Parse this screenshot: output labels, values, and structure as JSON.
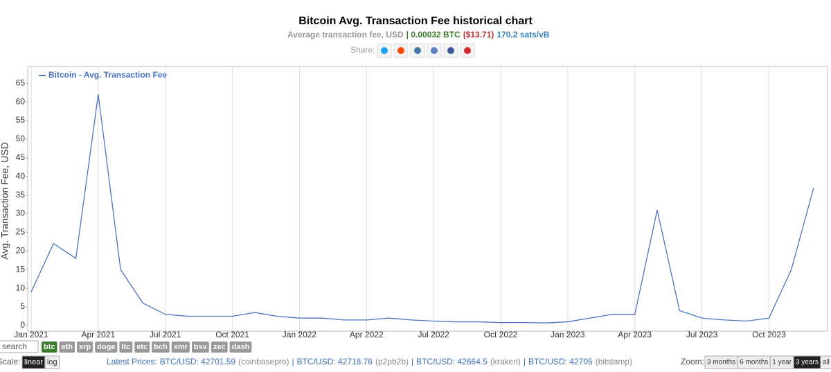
{
  "chart_data": {
    "type": "line",
    "title": "Bitcoin Avg. Transaction Fee historical chart",
    "subtitle": [
      "Average transaction fee, USD",
      "| 0.00032 BTC",
      "($13.71)",
      "170.2 sats/vB"
    ],
    "share_label": "Share:",
    "y_label": "Avg. Transaction Fee, USD",
    "x": [
      "2021-01",
      "2021-02",
      "2021-03",
      "2021-04",
      "2021-05",
      "2021-06",
      "2021-07",
      "2021-08",
      "2021-09",
      "2021-10",
      "2021-11",
      "2021-12",
      "2022-01",
      "2022-02",
      "2022-03",
      "2022-04",
      "2022-05",
      "2022-06",
      "2022-07",
      "2022-08",
      "2022-09",
      "2022-10",
      "2022-11",
      "2022-12",
      "2023-01",
      "2023-02",
      "2023-03",
      "2023-04",
      "2023-05",
      "2023-06",
      "2023-07",
      "2023-08",
      "2023-09",
      "2023-10",
      "2023-11",
      "2023-12"
    ],
    "series": [
      {
        "name": "Bitcoin - Avg. Transaction Fee",
        "color": "#4a72c4",
        "values": [
          9,
          22,
          18,
          62,
          15,
          6,
          3,
          2.5,
          2.5,
          2.5,
          3.5,
          2.5,
          2,
          2,
          1.5,
          1.5,
          2,
          1.5,
          1.2,
          1,
          1,
          0.8,
          0.8,
          0.7,
          1,
          2,
          3,
          3,
          31,
          4,
          2,
          1.5,
          1.2,
          2,
          15,
          37
        ]
      }
    ],
    "xlim": [
      "2021-01",
      "2023-12"
    ],
    "xticks": [
      {
        "value": "2021-01",
        "label": "Jan 2021"
      },
      {
        "value": "2021-04",
        "label": "Apr 2021"
      },
      {
        "value": "2021-07",
        "label": "Jul 2021"
      },
      {
        "value": "2021-10",
        "label": "Oct 2021"
      },
      {
        "value": "2022-01",
        "label": "Jan 2022"
      },
      {
        "value": "2022-04",
        "label": "Apr 2022"
      },
      {
        "value": "2022-07",
        "label": "Jul 2022"
      },
      {
        "value": "2022-10",
        "label": "Oct 2022"
      },
      {
        "value": "2023-01",
        "label": "Jan 2023"
      },
      {
        "value": "2023-04",
        "label": "Apr 2023"
      },
      {
        "value": "2023-07",
        "label": "Jul 2023"
      },
      {
        "value": "2023-10",
        "label": "Oct 2023"
      }
    ],
    "ylim": [
      -1.5,
      69.5
    ],
    "yticks": [
      0,
      5,
      10,
      15,
      20,
      25,
      30,
      35,
      40,
      45,
      50,
      55,
      60,
      65
    ],
    "grid": "x",
    "legend": "top-left"
  },
  "ui": {
    "search": "search",
    "coins": [
      "btc",
      "eth",
      "xrp",
      "doge",
      "ltc",
      "etc",
      "bch",
      "xmr",
      "bsv",
      "zec",
      "dash"
    ],
    "active_coin": 0,
    "scale_label": "Scale:",
    "scales": [
      "linear",
      "log"
    ],
    "active_scale": 0,
    "prices_label": "Latest Prices:",
    "separator": "|",
    "prices": [
      {
        "pair": "BTC/USD: 42701.59",
        "source": "(coinbasepro)"
      },
      {
        "pair": "BTC/USD: 42718.76",
        "source": "(p2pb2b)"
      },
      {
        "pair": "BTC/USD: 42664.5",
        "source": "(kraken)"
      },
      {
        "pair": "BTC/USD: 42705",
        "source": "(bitstamp)"
      }
    ],
    "zoom_label": "Zoom:",
    "zooms": [
      "3 months",
      "6 months",
      "1 year",
      "3 years",
      "all time"
    ],
    "active_zoom": 3
  }
}
